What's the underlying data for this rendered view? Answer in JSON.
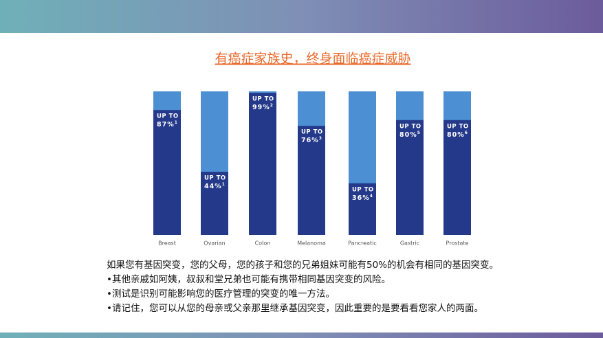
{
  "chart_data": {
    "type": "bar",
    "title": "有癌症家族史，终身面临癌症威胁",
    "categories": [
      "Breast",
      "Ovarian",
      "Colon",
      "Melanoma",
      "Pancreatic",
      "Gastric",
      "Prostate"
    ],
    "values": [
      87,
      44,
      99,
      76,
      36,
      80,
      80
    ],
    "value_labels": [
      "87%",
      "44%",
      "99%",
      "76%",
      "36%",
      "80%",
      "80%"
    ],
    "value_label_prefix": "UP TO",
    "footnotes": [
      "1",
      "1",
      "2",
      "3",
      "4",
      "5",
      "6"
    ],
    "color": "#24398a",
    "track_color": "#4c8fd3",
    "ylim": [
      0,
      100
    ]
  },
  "paragraphs": [
    " 如果您有基因突变，您的父母，您的孩子和您的兄弟姐妹可能有50%的机会有相同的基因突变。",
    "•其他亲戚如阿姨，叔叔和堂兄弟也可能有携带相同基因突变的风险。",
    "•测试是识别可能影响您的医疗管理的突变的唯一方法。",
    "•请记住，您可以从您的母亲或父亲那里继承基因突变，因此重要的是要看看您家人的两面。"
  ]
}
